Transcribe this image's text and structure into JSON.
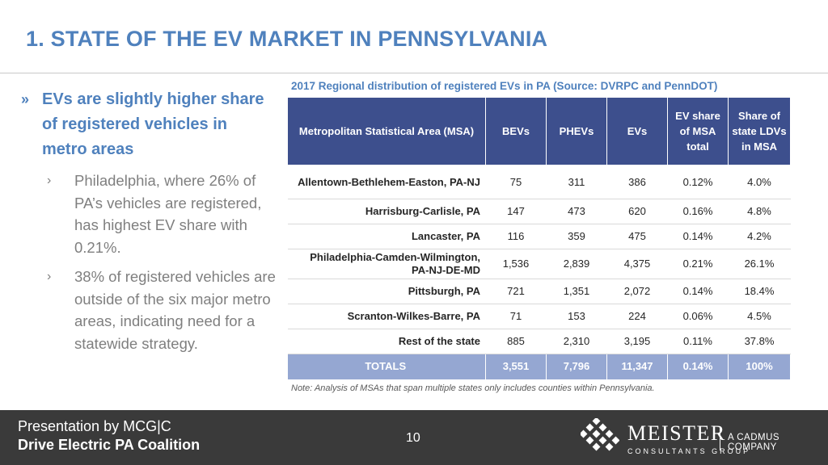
{
  "slide": {
    "title": "1. STATE OF THE EV MARKET IN PENNSYLVANIA",
    "bullet_marker": "»",
    "sub_marker": "›",
    "main_bullet": "EVs are slightly higher share of registered vehicles in metro areas",
    "sub_bullets": [
      "Philadelphia, where 26% of PA’s vehicles are registered, has highest EV share with 0.21%.",
      "38% of registered vehicles are outside of the six major metro areas, indicating need for a statewide strategy."
    ]
  },
  "table": {
    "caption": "2017 Regional distribution of registered EVs in PA (Source: DVRPC and PennDOT)",
    "headers": {
      "msa": "Metropolitan Statistical Area (MSA)",
      "bevs": "BEVs",
      "phevs": "PHEVs",
      "evs": "EVs",
      "ev_share": "EV share of MSA total",
      "ldv_share": "Share of state LDVs in MSA"
    },
    "rows": [
      {
        "msa": "Allentown-Bethlehem-Easton, PA-NJ",
        "bevs": "75",
        "phevs": "311",
        "evs": "386",
        "ev_share": "0.12%",
        "ldv_share": "4.0%"
      },
      {
        "msa": "Harrisburg-Carlisle, PA",
        "bevs": "147",
        "phevs": "473",
        "evs": "620",
        "ev_share": "0.16%",
        "ldv_share": "4.8%"
      },
      {
        "msa": "Lancaster, PA",
        "bevs": "116",
        "phevs": "359",
        "evs": "475",
        "ev_share": "0.14%",
        "ldv_share": "4.2%"
      },
      {
        "msa": "Philadelphia-Camden-Wilmington, PA-NJ-DE-MD",
        "bevs": "1,536",
        "phevs": "2,839",
        "evs": "4,375",
        "ev_share": "0.21%",
        "ldv_share": "26.1%"
      },
      {
        "msa": "Pittsburgh, PA",
        "bevs": "721",
        "phevs": "1,351",
        "evs": "2,072",
        "ev_share": "0.14%",
        "ldv_share": "18.4%"
      },
      {
        "msa": "Scranton-Wilkes-Barre, PA",
        "bevs": "71",
        "phevs": "153",
        "evs": "224",
        "ev_share": "0.06%",
        "ldv_share": "4.5%"
      },
      {
        "msa": "Rest of the state",
        "bevs": "885",
        "phevs": "2,310",
        "evs": "3,195",
        "ev_share": "0.11%",
        "ldv_share": "37.8%"
      }
    ],
    "totals": {
      "msa": "TOTALS",
      "bevs": "3,551",
      "phevs": "7,796",
      "evs": "11,347",
      "ev_share": "0.14%",
      "ldv_share": "100%"
    },
    "note": "Note: Analysis of MSAs that span multiple states only includes counties within Pennsylvania."
  },
  "footer": {
    "presenter": "Presentation by MCG|C",
    "coalition": "Drive Electric PA Coalition",
    "page_number": "10",
    "logo_name": "MEISTER",
    "logo_sub": "CONSULTANTS GROUP",
    "logo_cadmus": "A CADMUS COMPANY"
  },
  "colors": {
    "accent": "#4f81bd",
    "header_bg": "#3d4f8d",
    "totals_bg": "#95a7d2",
    "footer_bg": "#3a3a3a"
  }
}
